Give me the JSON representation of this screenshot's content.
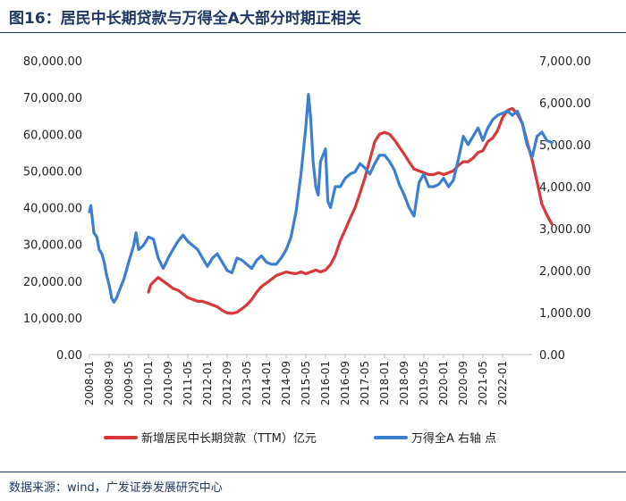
{
  "title": "图16：居民中长期贷款与万得全A大部分时期正相关",
  "source": "数据来源：wind，广发证券发展研究中心",
  "colors": {
    "red": "#d9383a",
    "blue": "#3b7fd0",
    "title": "#1f3864"
  },
  "chart_data": {
    "type": "line",
    "left_axis": {
      "min": 0,
      "max": 80000,
      "step": 10000,
      "ticks": [
        "0.00",
        "10,000.00",
        "20,000.00",
        "30,000.00",
        "40,000.00",
        "50,000.00",
        "60,000.00",
        "70,000.00",
        "80,000.00"
      ]
    },
    "right_axis": {
      "min": 0,
      "max": 7000,
      "step": 1000,
      "ticks": [
        "0.00",
        "1,000.00",
        "2,000.00",
        "3,000.00",
        "4,000.00",
        "5,000.00",
        "6,000.00",
        "7,000.00"
      ]
    },
    "x_start": 2008.0,
    "x_end": 2023.0,
    "x_tick_labels": [
      "2008-01",
      "2008-09",
      "2009-05",
      "2010-01",
      "2010-09",
      "2011-05",
      "2012-01",
      "2012-09",
      "2013-05",
      "2014-01",
      "2014-09",
      "2015-05",
      "2016-01",
      "2016-09",
      "2017-05",
      "2018-01",
      "2018-09",
      "2019-05",
      "2020-01",
      "2020-09",
      "2021-05",
      "2022-01"
    ],
    "series": [
      {
        "name": "新增居民中长期贷款（TTM）亿元",
        "axis": "left",
        "points": [
          [
            2010.0,
            17000
          ],
          [
            2010.08,
            19000
          ],
          [
            2010.2,
            20000
          ],
          [
            2010.33,
            21000
          ],
          [
            2010.5,
            20000
          ],
          [
            2010.67,
            19000
          ],
          [
            2010.83,
            18000
          ],
          [
            2011.0,
            17500
          ],
          [
            2011.17,
            16500
          ],
          [
            2011.33,
            15500
          ],
          [
            2011.5,
            15000
          ],
          [
            2011.67,
            14500
          ],
          [
            2011.83,
            14500
          ],
          [
            2012.0,
            14000
          ],
          [
            2012.17,
            13500
          ],
          [
            2012.33,
            13000
          ],
          [
            2012.5,
            12000
          ],
          [
            2012.67,
            11300
          ],
          [
            2012.83,
            11200
          ],
          [
            2013.0,
            11500
          ],
          [
            2013.17,
            12500
          ],
          [
            2013.33,
            13500
          ],
          [
            2013.5,
            15000
          ],
          [
            2013.67,
            17000
          ],
          [
            2013.83,
            18500
          ],
          [
            2014.0,
            19500
          ],
          [
            2014.17,
            20500
          ],
          [
            2014.33,
            21500
          ],
          [
            2014.5,
            22000
          ],
          [
            2014.67,
            22500
          ],
          [
            2014.83,
            22200
          ],
          [
            2015.0,
            22000
          ],
          [
            2015.17,
            22500
          ],
          [
            2015.33,
            22000
          ],
          [
            2015.5,
            22500
          ],
          [
            2015.67,
            23000
          ],
          [
            2015.83,
            22500
          ],
          [
            2016.0,
            23000
          ],
          [
            2016.17,
            24500
          ],
          [
            2016.33,
            27000
          ],
          [
            2016.5,
            31000
          ],
          [
            2016.67,
            34000
          ],
          [
            2016.83,
            37000
          ],
          [
            2017.0,
            40000
          ],
          [
            2017.17,
            44000
          ],
          [
            2017.33,
            48000
          ],
          [
            2017.5,
            53000
          ],
          [
            2017.67,
            58000
          ],
          [
            2017.83,
            60000
          ],
          [
            2018.0,
            60500
          ],
          [
            2018.17,
            60000
          ],
          [
            2018.33,
            58500
          ],
          [
            2018.5,
            56500
          ],
          [
            2018.67,
            54500
          ],
          [
            2018.83,
            52500
          ],
          [
            2019.0,
            50500
          ],
          [
            2019.17,
            50000
          ],
          [
            2019.33,
            49500
          ],
          [
            2019.5,
            49000
          ],
          [
            2019.67,
            49000
          ],
          [
            2019.83,
            49500
          ],
          [
            2020.0,
            49000
          ],
          [
            2020.17,
            49500
          ],
          [
            2020.33,
            50000
          ],
          [
            2020.5,
            51500
          ],
          [
            2020.67,
            52500
          ],
          [
            2020.83,
            52500
          ],
          [
            2021.0,
            53500
          ],
          [
            2021.17,
            55000
          ],
          [
            2021.33,
            55500
          ],
          [
            2021.5,
            58000
          ],
          [
            2021.67,
            59000
          ],
          [
            2021.83,
            61000
          ],
          [
            2022.0,
            64500
          ],
          [
            2022.17,
            66500
          ],
          [
            2022.33,
            67000
          ],
          [
            2022.5,
            65500
          ],
          [
            2022.67,
            63000
          ],
          [
            2022.83,
            58000
          ],
          [
            2023.0,
            53000
          ],
          [
            2023.17,
            47000
          ],
          [
            2023.33,
            41000
          ],
          [
            2023.5,
            38000
          ],
          [
            2023.67,
            35500
          ]
        ]
      },
      {
        "name": "万得全A 右轴 点",
        "axis": "right",
        "points": [
          [
            2008.0,
            3400
          ],
          [
            2008.05,
            3550
          ],
          [
            2008.15,
            2900
          ],
          [
            2008.25,
            2800
          ],
          [
            2008.33,
            2500
          ],
          [
            2008.42,
            2400
          ],
          [
            2008.5,
            2200
          ],
          [
            2008.58,
            1900
          ],
          [
            2008.67,
            1650
          ],
          [
            2008.75,
            1350
          ],
          [
            2008.83,
            1250
          ],
          [
            2008.92,
            1350
          ],
          [
            2009.0,
            1500
          ],
          [
            2009.17,
            1800
          ],
          [
            2009.33,
            2200
          ],
          [
            2009.5,
            2600
          ],
          [
            2009.58,
            2900
          ],
          [
            2009.67,
            2500
          ],
          [
            2009.83,
            2600
          ],
          [
            2010.0,
            2800
          ],
          [
            2010.17,
            2750
          ],
          [
            2010.33,
            2300
          ],
          [
            2010.5,
            2050
          ],
          [
            2010.67,
            2300
          ],
          [
            2010.83,
            2500
          ],
          [
            2011.0,
            2700
          ],
          [
            2011.17,
            2850
          ],
          [
            2011.33,
            2700
          ],
          [
            2011.5,
            2600
          ],
          [
            2011.67,
            2500
          ],
          [
            2011.83,
            2300
          ],
          [
            2012.0,
            2100
          ],
          [
            2012.17,
            2300
          ],
          [
            2012.33,
            2400
          ],
          [
            2012.5,
            2200
          ],
          [
            2012.67,
            2000
          ],
          [
            2012.83,
            1950
          ],
          [
            2013.0,
            2300
          ],
          [
            2013.17,
            2250
          ],
          [
            2013.33,
            2150
          ],
          [
            2013.5,
            2050
          ],
          [
            2013.67,
            2250
          ],
          [
            2013.83,
            2350
          ],
          [
            2014.0,
            2200
          ],
          [
            2014.17,
            2150
          ],
          [
            2014.33,
            2150
          ],
          [
            2014.5,
            2300
          ],
          [
            2014.67,
            2500
          ],
          [
            2014.83,
            2800
          ],
          [
            2015.0,
            3400
          ],
          [
            2015.17,
            4300
          ],
          [
            2015.33,
            5400
          ],
          [
            2015.42,
            6200
          ],
          [
            2015.5,
            5600
          ],
          [
            2015.58,
            4600
          ],
          [
            2015.67,
            4000
          ],
          [
            2015.75,
            3800
          ],
          [
            2015.83,
            4600
          ],
          [
            2016.0,
            4900
          ],
          [
            2016.08,
            3650
          ],
          [
            2016.17,
            3500
          ],
          [
            2016.33,
            4000
          ],
          [
            2016.5,
            4000
          ],
          [
            2016.67,
            4200
          ],
          [
            2016.83,
            4300
          ],
          [
            2017.0,
            4350
          ],
          [
            2017.17,
            4550
          ],
          [
            2017.33,
            4450
          ],
          [
            2017.5,
            4300
          ],
          [
            2017.67,
            4550
          ],
          [
            2017.83,
            4750
          ],
          [
            2018.0,
            4750
          ],
          [
            2018.17,
            4600
          ],
          [
            2018.33,
            4400
          ],
          [
            2018.5,
            4050
          ],
          [
            2018.67,
            3800
          ],
          [
            2018.83,
            3500
          ],
          [
            2019.0,
            3300
          ],
          [
            2019.17,
            4100
          ],
          [
            2019.33,
            4300
          ],
          [
            2019.5,
            4000
          ],
          [
            2019.67,
            4000
          ],
          [
            2019.83,
            4050
          ],
          [
            2020.0,
            4200
          ],
          [
            2020.17,
            4000
          ],
          [
            2020.33,
            4150
          ],
          [
            2020.5,
            4650
          ],
          [
            2020.67,
            5200
          ],
          [
            2020.83,
            5000
          ],
          [
            2021.0,
            5200
          ],
          [
            2021.17,
            5400
          ],
          [
            2021.33,
            5100
          ],
          [
            2021.5,
            5400
          ],
          [
            2021.67,
            5600
          ],
          [
            2021.83,
            5700
          ],
          [
            2022.0,
            5750
          ],
          [
            2022.17,
            5800
          ],
          [
            2022.33,
            5700
          ],
          [
            2022.5,
            5800
          ],
          [
            2022.67,
            5500
          ],
          [
            2022.83,
            5000
          ],
          [
            2023.0,
            4700
          ],
          [
            2023.17,
            5200
          ],
          [
            2023.33,
            5300
          ],
          [
            2023.5,
            5100
          ],
          [
            2023.67,
            5050
          ]
        ]
      }
    ]
  }
}
